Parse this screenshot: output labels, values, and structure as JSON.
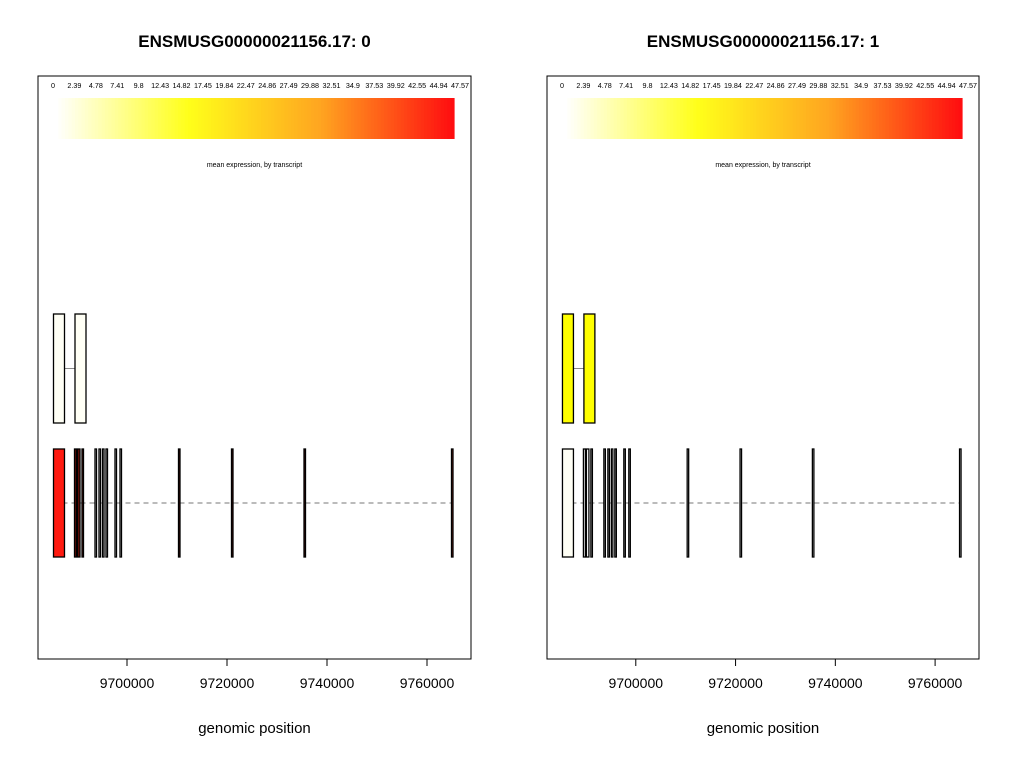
{
  "chart_data": [
    {
      "type": "gene-structure",
      "title": "ENSMUSG00000021156.17: 0",
      "xlabel": "genomic position",
      "xticks": [
        9700000,
        9720000,
        9740000,
        9760000
      ],
      "xlim": [
        9682200,
        9768800
      ],
      "colorbar": {
        "label": "mean expression, by transcript",
        "min": 0,
        "max": 47.57,
        "ticks": [
          "0",
          "2.39",
          "4.78",
          "7.41",
          "9.8",
          "12.43",
          "14.82",
          "17.45",
          "19.84",
          "22.47",
          "24.86",
          "27.49",
          "29.88",
          "32.51",
          "34.9",
          "37.53",
          "39.92",
          "42.55",
          "44.94",
          "47.57"
        ],
        "colors": [
          "#ffffff",
          "#ffff1a",
          "#ffa520",
          "#ff0e10"
        ]
      },
      "transcripts": [
        {
          "fill": "#fffff5",
          "exons": [
            [
              9685300,
              9687500
            ],
            [
              9689600,
              9691800
            ]
          ]
        },
        {
          "fill": "#ff1a10",
          "exons": [
            [
              9685300,
              9687500
            ],
            [
              9689500,
              9689900
            ],
            [
              9690100,
              9690600
            ],
            [
              9691000,
              9691300
            ],
            [
              9693600,
              9693800
            ],
            [
              9694400,
              9694600
            ],
            [
              9695100,
              9695300
            ],
            [
              9695800,
              9696000
            ],
            [
              9697600,
              9697800
            ],
            [
              9698600,
              9698800
            ],
            [
              9710300,
              9710500
            ],
            [
              9720900,
              9721100
            ],
            [
              9735400,
              9735600
            ],
            [
              9764900,
              9765200
            ]
          ],
          "exon_fills": [
            "#ff1a10",
            "#6b0f08",
            "#6b0f08",
            "#6b0f08",
            "#ffffff",
            "#ffffff",
            "#ffffff",
            "#ffffff",
            "#ffffff",
            "#ffffff",
            "#5a0f08",
            "#5a0f08",
            "#5a0f08",
            "#a0281a"
          ]
        }
      ]
    },
    {
      "type": "gene-structure",
      "title": "ENSMUSG00000021156.17: 1",
      "xlabel": "genomic position",
      "xticks": [
        9700000,
        9720000,
        9740000,
        9760000
      ],
      "xlim": [
        9682200,
        9768800
      ],
      "colorbar": {
        "label": "mean expression, by transcript",
        "min": 0,
        "max": 47.57,
        "ticks": [
          "0",
          "2.39",
          "4.78",
          "7.41",
          "9.8",
          "12.43",
          "14.82",
          "17.45",
          "19.84",
          "22.47",
          "24.86",
          "27.49",
          "29.88",
          "32.51",
          "34.9",
          "37.53",
          "39.92",
          "42.55",
          "44.94",
          "47.57"
        ],
        "colors": [
          "#ffffff",
          "#ffff1a",
          "#ffa520",
          "#ff0e10"
        ]
      },
      "transcripts": [
        {
          "fill": "#ffff00",
          "exons": [
            [
              9685300,
              9687500
            ],
            [
              9689600,
              9691800
            ]
          ]
        },
        {
          "fill": "#fffff5",
          "exons": [
            [
              9685300,
              9687500
            ],
            [
              9689500,
              9689900
            ],
            [
              9690100,
              9690600
            ],
            [
              9691000,
              9691300
            ],
            [
              9693600,
              9693800
            ],
            [
              9694400,
              9694600
            ],
            [
              9695100,
              9695300
            ],
            [
              9695800,
              9696000
            ],
            [
              9697600,
              9697800
            ],
            [
              9698600,
              9698800
            ],
            [
              9710300,
              9710500
            ],
            [
              9720900,
              9721100
            ],
            [
              9735400,
              9735600
            ],
            [
              9764900,
              9765200
            ]
          ],
          "exon_fills": [
            "#fffff5",
            "#ffffff",
            "#ffffff",
            "#ffffff",
            "#ffffff",
            "#ffffff",
            "#ffffff",
            "#ffffff",
            "#ffffff",
            "#ffffff",
            "#ffffff",
            "#ffffff",
            "#ffffff",
            "#ffffff"
          ]
        }
      ]
    }
  ]
}
